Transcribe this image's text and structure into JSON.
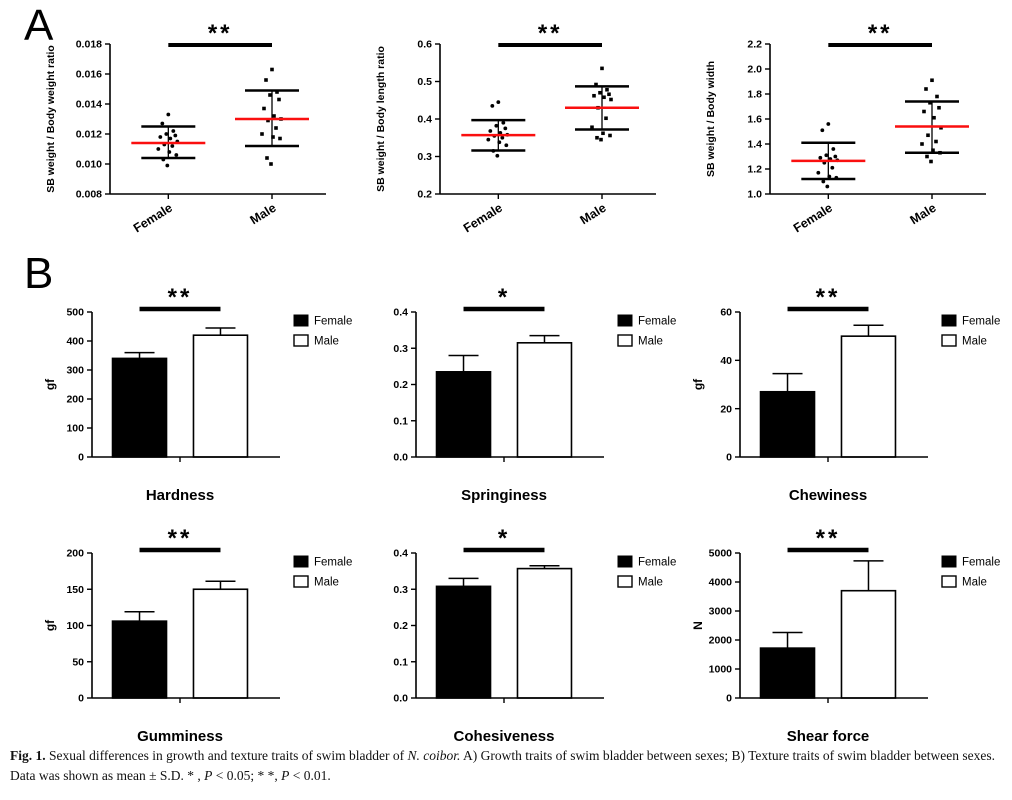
{
  "figure": {
    "panel_a_label": "A",
    "panel_b_label": "B"
  },
  "colors": {
    "mean_line_red": "#fa0f0f",
    "axis_black": "#000000",
    "bar_female_fill": "#000000",
    "bar_male_fill": "#ffffff",
    "background": "#ffffff"
  },
  "chart_data": [
    {
      "type": "scatter",
      "panel": "A",
      "ylabel": "SB weight / Body weight ratio",
      "ylim": [
        0.008,
        0.018
      ],
      "yticks": [
        "0.008",
        "0.010",
        "0.012",
        "0.014",
        "0.016",
        "0.018"
      ],
      "categories": [
        "Female",
        "Male"
      ],
      "significance": "**",
      "groups": [
        {
          "label": "Female",
          "marker": "circle",
          "mean": 0.0114,
          "sd_low": 0.0104,
          "sd_high": 0.0125,
          "points": [
            0.0133,
            0.0127,
            0.0122,
            0.012,
            0.0119,
            0.0118,
            0.0117,
            0.0115,
            0.0113,
            0.0112,
            0.011,
            0.0108,
            0.0106,
            0.0103,
            0.0099
          ]
        },
        {
          "label": "Male",
          "marker": "square",
          "mean": 0.013,
          "sd_low": 0.0112,
          "sd_high": 0.0149,
          "points": [
            0.0163,
            0.0156,
            0.0148,
            0.0146,
            0.0143,
            0.0137,
            0.0132,
            0.013,
            0.0129,
            0.0124,
            0.012,
            0.0118,
            0.0117,
            0.0104,
            0.01
          ]
        }
      ]
    },
    {
      "type": "scatter",
      "panel": "A",
      "ylabel": "SB weight / Body length ratio",
      "ylim": [
        0.2,
        0.6
      ],
      "yticks": [
        "0.2",
        "0.3",
        "0.4",
        "0.5",
        "0.6"
      ],
      "categories": [
        "Female",
        "Male"
      ],
      "significance": "**",
      "groups": [
        {
          "label": "Female",
          "marker": "circle",
          "mean": 0.357,
          "sd_low": 0.316,
          "sd_high": 0.397,
          "points": [
            0.445,
            0.435,
            0.39,
            0.382,
            0.375,
            0.368,
            0.363,
            0.358,
            0.355,
            0.35,
            0.345,
            0.338,
            0.33,
            0.315,
            0.302
          ]
        },
        {
          "label": "Male",
          "marker": "square",
          "mean": 0.43,
          "sd_low": 0.372,
          "sd_high": 0.487,
          "points": [
            0.535,
            0.492,
            0.478,
            0.47,
            0.466,
            0.462,
            0.458,
            0.452,
            0.43,
            0.402,
            0.378,
            0.362,
            0.356,
            0.35,
            0.345
          ]
        }
      ]
    },
    {
      "type": "scatter",
      "panel": "A",
      "ylabel": "SB weight / Body width",
      "ylim": [
        1.0,
        2.2
      ],
      "yticks": [
        "1.0",
        "1.2",
        "1.4",
        "1.6",
        "1.8",
        "2.0",
        "2.2"
      ],
      "categories": [
        "Female",
        "Male"
      ],
      "significance": "**",
      "groups": [
        {
          "label": "Female",
          "marker": "circle",
          "mean": 1.265,
          "sd_low": 1.12,
          "sd_high": 1.41,
          "points": [
            1.56,
            1.51,
            1.36,
            1.31,
            1.3,
            1.29,
            1.28,
            1.27,
            1.25,
            1.21,
            1.17,
            1.14,
            1.13,
            1.1,
            1.06
          ]
        },
        {
          "label": "Male",
          "marker": "square",
          "mean": 1.54,
          "sd_low": 1.33,
          "sd_high": 1.74,
          "points": [
            1.91,
            1.84,
            1.78,
            1.73,
            1.69,
            1.66,
            1.61,
            1.53,
            1.47,
            1.42,
            1.4,
            1.35,
            1.33,
            1.3,
            1.26
          ]
        }
      ]
    },
    {
      "type": "bar",
      "panel": "B",
      "title": "Hardness",
      "ylabel": "gf",
      "ylim": [
        0,
        500
      ],
      "yticks": [
        "0",
        "100",
        "200",
        "300",
        "400",
        "500"
      ],
      "categories": [
        "Female",
        "Male"
      ],
      "significance": "**",
      "legend": [
        "Female",
        "Male"
      ],
      "series": [
        {
          "name": "Female",
          "value": 340,
          "error_top": 360
        },
        {
          "name": "Male",
          "value": 420,
          "error_top": 445
        }
      ]
    },
    {
      "type": "bar",
      "panel": "B",
      "title": "Springiness",
      "ylabel": "",
      "ylim": [
        0,
        0.4
      ],
      "yticks": [
        "0.0",
        "0.1",
        "0.2",
        "0.3",
        "0.4"
      ],
      "categories": [
        "Female",
        "Male"
      ],
      "significance": "*",
      "legend": [
        "Female",
        "Male"
      ],
      "series": [
        {
          "name": "Female",
          "value": 0.235,
          "error_top": 0.28
        },
        {
          "name": "Male",
          "value": 0.315,
          "error_top": 0.335
        }
      ]
    },
    {
      "type": "bar",
      "panel": "B",
      "title": "Chewiness",
      "ylabel": "gf",
      "ylim": [
        0,
        60
      ],
      "yticks": [
        "0",
        "20",
        "40",
        "60"
      ],
      "categories": [
        "Female",
        "Male"
      ],
      "significance": "**",
      "legend": [
        "Female",
        "Male"
      ],
      "series": [
        {
          "name": "Female",
          "value": 27,
          "error_top": 34.5
        },
        {
          "name": "Male",
          "value": 50,
          "error_top": 54.5
        }
      ]
    },
    {
      "type": "bar",
      "panel": "B",
      "title": "Gumminess",
      "ylabel": "gf",
      "ylim": [
        0,
        200
      ],
      "yticks": [
        "0",
        "50",
        "100",
        "150",
        "200"
      ],
      "categories": [
        "Female",
        "Male"
      ],
      "significance": "**",
      "legend": [
        "Female",
        "Male"
      ],
      "series": [
        {
          "name": "Female",
          "value": 106,
          "error_top": 119
        },
        {
          "name": "Male",
          "value": 150,
          "error_top": 161
        }
      ]
    },
    {
      "type": "bar",
      "panel": "B",
      "title": "Cohesiveness",
      "ylabel": "",
      "ylim": [
        0,
        0.4
      ],
      "yticks": [
        "0.0",
        "0.1",
        "0.2",
        "0.3",
        "0.4"
      ],
      "categories": [
        "Female",
        "Male"
      ],
      "significance": "*",
      "legend": [
        "Female",
        "Male"
      ],
      "series": [
        {
          "name": "Female",
          "value": 0.308,
          "error_top": 0.33
        },
        {
          "name": "Male",
          "value": 0.357,
          "error_top": 0.365
        }
      ]
    },
    {
      "type": "bar",
      "panel": "B",
      "title": "Shear force",
      "ylabel": "N",
      "ylim": [
        0,
        5000
      ],
      "yticks": [
        "0",
        "1000",
        "2000",
        "3000",
        "4000",
        "5000"
      ],
      "categories": [
        "Female",
        "Male"
      ],
      "significance": "**",
      "legend": [
        "Female",
        "Male"
      ],
      "series": [
        {
          "name": "Female",
          "value": 1720,
          "error_top": 2260
        },
        {
          "name": "Male",
          "value": 3700,
          "error_top": 4730
        }
      ]
    }
  ],
  "caption": {
    "segments": [
      {
        "t": "Fig. 1.",
        "b": 1
      },
      {
        "t": "  Sexual differences in growth and texture traits of swim bladder of "
      },
      {
        "t": "N. coibor.",
        "i": 1
      },
      {
        "t": " A) Growth traits of swim bladder between sexes; B) Texture traits of swim bladder between sexes. Data was shown as mean ± S.D. * , "
      },
      {
        "t": "P",
        "i": 1
      },
      {
        "t": " < 0.05; * *, "
      },
      {
        "t": "P",
        "i": 1
      },
      {
        "t": " < 0.01."
      }
    ]
  }
}
